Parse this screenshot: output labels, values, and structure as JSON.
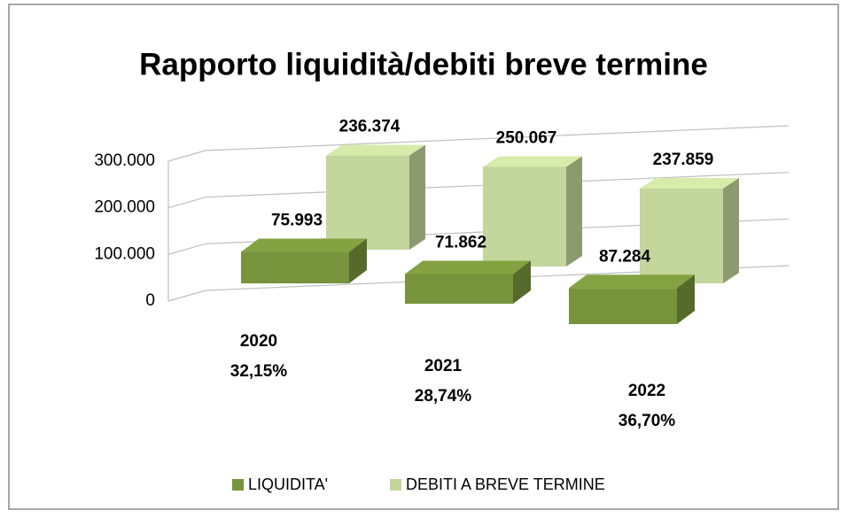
{
  "chart_data": {
    "type": "bar3d",
    "title": "Rapporto liquidità/debiti breve termine",
    "categories": [
      "2020",
      "2021",
      "2022"
    ],
    "category_notes": [
      "32,15%",
      "28,74%",
      "36,70%"
    ],
    "series": [
      {
        "name": "LIQUIDITA'",
        "color": "#77933c",
        "values": [
          75993,
          71862,
          87284
        ],
        "value_labels": [
          "75.993",
          "71.862",
          "87.284"
        ]
      },
      {
        "name": "DEBITI A BREVE TERMINE",
        "color": "#c3d69b",
        "values": [
          236374,
          250067,
          237859
        ],
        "value_labels": [
          "236.374",
          "250.067",
          "237.859"
        ]
      }
    ],
    "ylim": [
      0,
      300000
    ],
    "yticks": [
      {
        "value": 0,
        "label": "0"
      },
      {
        "value": 100000,
        "label": "100.000"
      },
      {
        "value": 200000,
        "label": "200.000"
      },
      {
        "value": 300000,
        "label": "300.000"
      }
    ],
    "grid": true,
    "legend": "bottom"
  }
}
